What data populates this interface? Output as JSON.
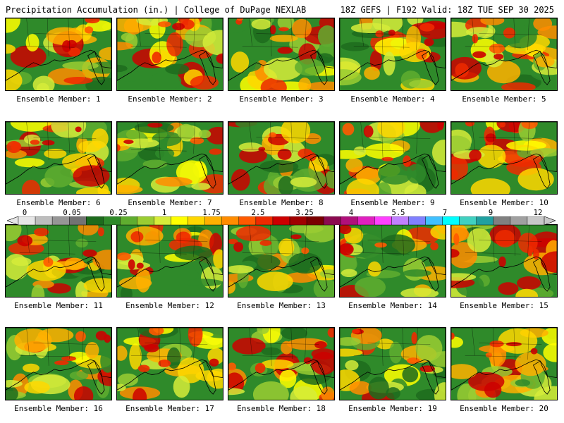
{
  "header": {
    "title": "Precipitation Accumulation (in.) | College of DuPage NEXLAB",
    "run_info": "18Z GEFS | F192 Valid: 18Z TUE SEP 30 2025"
  },
  "panels": [
    {
      "label": "Ensemble Member: 1"
    },
    {
      "label": "Ensemble Member: 2"
    },
    {
      "label": "Ensemble Member: 3"
    },
    {
      "label": "Ensemble Member: 4"
    },
    {
      "label": "Ensemble Member: 5"
    },
    {
      "label": "Ensemble Member: 6"
    },
    {
      "label": "Ensemble Member: 7"
    },
    {
      "label": "Ensemble Member: 8"
    },
    {
      "label": "Ensemble Member: 9"
    },
    {
      "label": "Ensemble Member: 10"
    },
    {
      "label": "Ensemble Member: 11"
    },
    {
      "label": "Ensemble Member: 12"
    },
    {
      "label": "Ensemble Member: 13"
    },
    {
      "label": "Ensemble Member: 14"
    },
    {
      "label": "Ensemble Member: 15"
    },
    {
      "label": "Ensemble Member: 16"
    },
    {
      "label": "Ensemble Member: 17"
    },
    {
      "label": "Ensemble Member: 18"
    },
    {
      "label": "Ensemble Member: 19"
    },
    {
      "label": "Ensemble Member: 20"
    }
  ],
  "colorbar": {
    "tick_labels": [
      "0",
      "0.05",
      "0.25",
      "1",
      "1.75",
      "2.5",
      "3.25",
      "4",
      "5.5",
      "7",
      "9",
      "12"
    ],
    "colors": [
      "#e6e6e6",
      "#bdbdbd",
      "#969696",
      "#737373",
      "#1d6b1d",
      "#2f8a2a",
      "#5fad2f",
      "#9acd32",
      "#d6ec3a",
      "#ffff00",
      "#ffd700",
      "#ffb000",
      "#ff8c00",
      "#ff5a00",
      "#ee2a00",
      "#cc0000",
      "#a00000",
      "#7a0000",
      "#8b0a50",
      "#b0107a",
      "#e020c0",
      "#ff40ff",
      "#c080ff",
      "#8080ff",
      "#40c0ff",
      "#00ffff",
      "#40d0c0",
      "#20a0a0",
      "#808080",
      "#a0a0a0",
      "#c8c8c8"
    ]
  }
}
